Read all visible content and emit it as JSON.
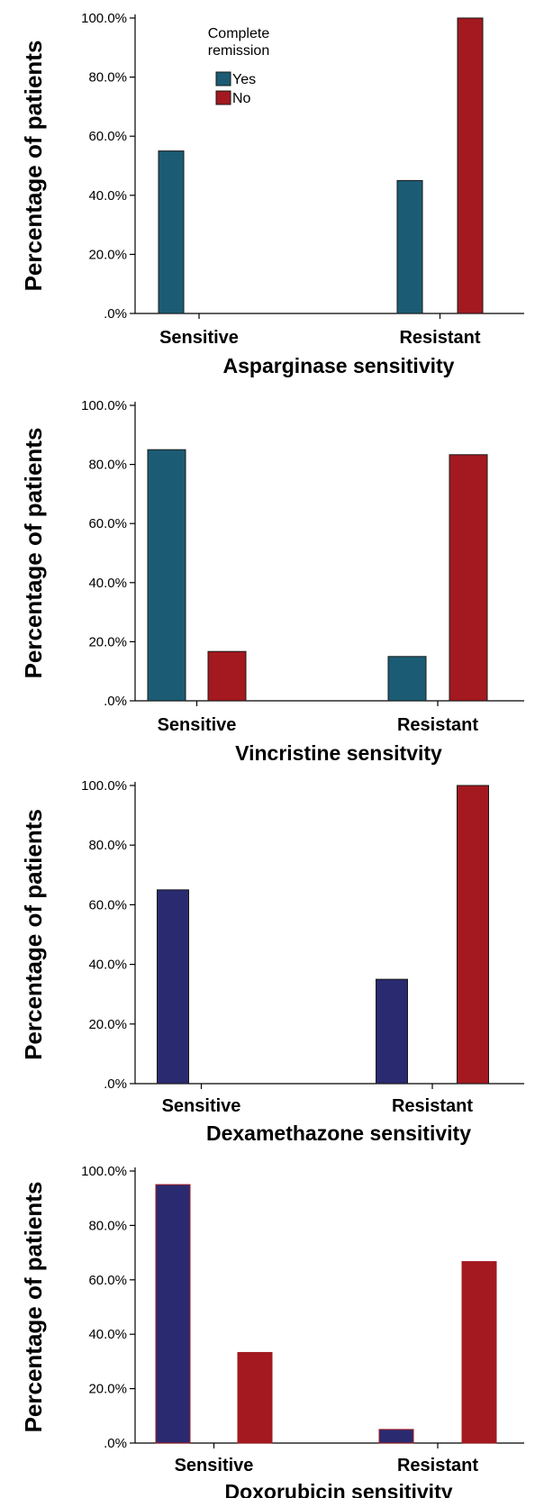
{
  "chart_data": [
    {
      "type": "bar",
      "categories": [
        "Sensitive",
        "Resistant"
      ],
      "series": [
        {
          "name": "Yes",
          "values": [
            55.0,
            45.0
          ],
          "color": "#1b5c74"
        },
        {
          "name": "No",
          "values": [
            0.0,
            100.0
          ],
          "color": "#a3191f"
        }
      ],
      "ylabel": "Percentage of patients",
      "xlabel": "Asparginase sensitivity",
      "ylim": [
        0,
        100
      ],
      "yticks": [
        ".0%",
        "20.0%",
        "40.0%",
        "60.0%",
        "80.0%",
        "100.0%"
      ],
      "legend": {
        "title": "Complete remission",
        "title_lines": [
          "Complete",
          "remission"
        ],
        "placement": "top-left"
      },
      "grid": false
    },
    {
      "type": "bar",
      "categories": [
        "Sensitive",
        "Resistant"
      ],
      "series": [
        {
          "name": "Yes",
          "values": [
            85.0,
            15.0
          ],
          "color": "#1b5c74"
        },
        {
          "name": "No",
          "values": [
            16.7,
            83.3
          ],
          "color": "#a3191f"
        }
      ],
      "ylabel": "Percentage of patients",
      "xlabel": "Vincristine sensitvity",
      "ylim": [
        0,
        100
      ],
      "yticks": [
        ".0%",
        "20.0%",
        "40.0%",
        "60.0%",
        "80.0%",
        "100.0%"
      ],
      "grid": false
    },
    {
      "type": "bar",
      "categories": [
        "Sensitive",
        "Resistant"
      ],
      "series": [
        {
          "name": "Yes",
          "values": [
            65.0,
            35.0
          ],
          "color": "#2a2a70"
        },
        {
          "name": "No",
          "values": [
            0.0,
            100.0
          ],
          "color": "#a3191f"
        }
      ],
      "ylabel": "Percentage of patients",
      "xlabel": "Dexamethazone sensitivity",
      "ylim": [
        0,
        100
      ],
      "yticks": [
        ".0%",
        "20.0%",
        "40.0%",
        "60.0%",
        "80.0%",
        "100.0%"
      ],
      "grid": false
    },
    {
      "type": "bar",
      "categories": [
        "Sensitive",
        "Resistant"
      ],
      "series": [
        {
          "name": "Yes",
          "values": [
            95.0,
            5.0
          ],
          "color": "#2a2a70"
        },
        {
          "name": "No",
          "values": [
            33.3,
            66.7
          ],
          "color": "#a3191f"
        }
      ],
      "ylabel": "Percentage of patients",
      "xlabel": "Doxorubicin sensitivity",
      "ylim": [
        0,
        100
      ],
      "yticks": [
        ".0%",
        "20.0%",
        "40.0%",
        "60.0%",
        "80.0%",
        "100.0%"
      ],
      "grid": false
    }
  ]
}
